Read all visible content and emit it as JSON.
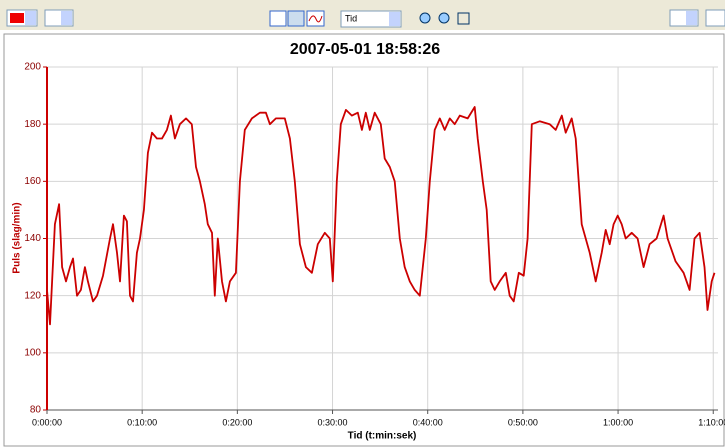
{
  "toolbar": {
    "dropdown": "Tid"
  },
  "chart_data": {
    "type": "line",
    "title": "2007-05-01 18:58:26",
    "x_label": "Tid (t:min:sek)",
    "y_label": "Puls (slag/min)",
    "xlim": [
      0,
      4230
    ],
    "ylim": [
      80,
      200
    ],
    "xticks": [
      {
        "value": 0,
        "label": "0:00:00"
      },
      {
        "value": 600,
        "label": "0:10:00"
      },
      {
        "value": 1200,
        "label": "0:20:00"
      },
      {
        "value": 1800,
        "label": "0:30:00"
      },
      {
        "value": 2400,
        "label": "0:40:00"
      },
      {
        "value": 3000,
        "label": "0:50:00"
      },
      {
        "value": 3600,
        "label": "1:00:00"
      },
      {
        "value": 4200,
        "label": "1:10:00"
      }
    ],
    "yticks": [
      80,
      100,
      120,
      140,
      160,
      180,
      200
    ],
    "grid": true,
    "series": [
      {
        "color": "#cc0000",
        "x": [
          0,
          19,
          32,
          50,
          76,
          95,
          120,
          145,
          164,
          189,
          214,
          239,
          258,
          290,
          315,
          353,
          397,
          416,
          441,
          460,
          485,
          504,
          523,
          542,
          567,
          586,
          611,
          636,
          662,
          693,
          725,
          756,
          781,
          806,
          838,
          876,
          913,
          939,
          964,
          995,
          1014,
          1040,
          1058,
          1077,
          1103,
          1128,
          1153,
          1191,
          1216,
          1247,
          1292,
          1342,
          1380,
          1405,
          1443,
          1499,
          1531,
          1562,
          1594,
          1632,
          1670,
          1707,
          1751,
          1783,
          1802,
          1827,
          1852,
          1884,
          1922,
          1959,
          1985,
          2010,
          2035,
          2066,
          2104,
          2129,
          2161,
          2192,
          2224,
          2255,
          2287,
          2318,
          2350,
          2388,
          2413,
          2444,
          2476,
          2507,
          2539,
          2570,
          2602,
          2652,
          2696,
          2715,
          2747,
          2772,
          2797,
          2822,
          2854,
          2892,
          2917,
          2942,
          2974,
          3005,
          3030,
          3056,
          3106,
          3169,
          3207,
          3245,
          3270,
          3308,
          3333,
          3371,
          3421,
          3459,
          3497,
          3522,
          3547,
          3572,
          3598,
          3623,
          3648,
          3686,
          3723,
          3761,
          3799,
          3843,
          3887,
          3912,
          3963,
          4013,
          4051,
          4082,
          4114,
          4145,
          4164,
          4190,
          4208
        ],
        "values": [
          122,
          110,
          125,
          145,
          152,
          130,
          125,
          130,
          133,
          120,
          122,
          130,
          125,
          118,
          120,
          127,
          140,
          145,
          135,
          125,
          148,
          146,
          120,
          118,
          135,
          140,
          150,
          170,
          177,
          175,
          175,
          178,
          183,
          175,
          180,
          182,
          180,
          165,
          160,
          152,
          145,
          142,
          120,
          140,
          125,
          118,
          125,
          128,
          160,
          178,
          182,
          184,
          184,
          180,
          182,
          182,
          175,
          160,
          138,
          130,
          128,
          138,
          142,
          140,
          125,
          160,
          180,
          185,
          183,
          184,
          178,
          184,
          178,
          184,
          180,
          168,
          165,
          160,
          140,
          130,
          125,
          122,
          120,
          140,
          160,
          178,
          182,
          178,
          182,
          180,
          183,
          182,
          186,
          175,
          160,
          150,
          125,
          122,
          125,
          128,
          120,
          118,
          128,
          127,
          140,
          180,
          181,
          180,
          178,
          183,
          177,
          182,
          175,
          145,
          135,
          125,
          135,
          143,
          138,
          145,
          148,
          145,
          140,
          142,
          140,
          130,
          138,
          140,
          148,
          140,
          132,
          128,
          122,
          140,
          142,
          130,
          115,
          125,
          128
        ]
      }
    ]
  }
}
